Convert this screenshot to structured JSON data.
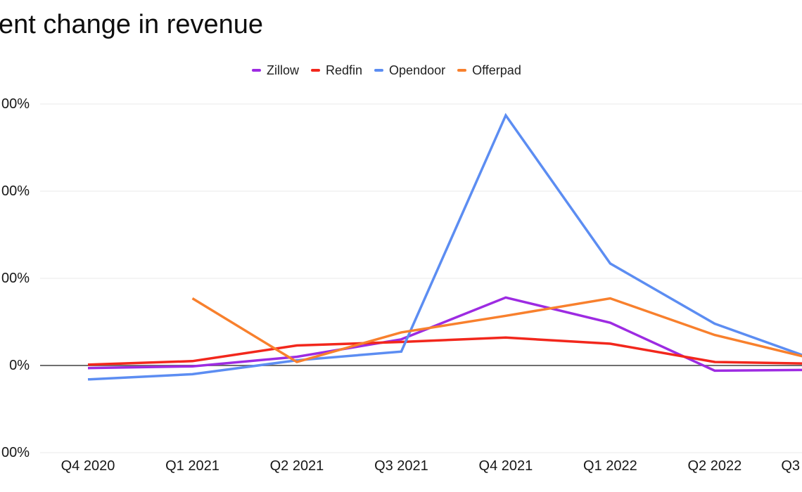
{
  "title": "ent change in revenue",
  "colors": {
    "background": "#FFFFFF",
    "grid": "#E8E8E8",
    "zero_line": "#6F6F6F",
    "text": "#171717",
    "title_text": "#0E0E0E"
  },
  "chart_data": {
    "type": "line",
    "title_visible": "ent change in revenue",
    "x": [
      "Q4 2020",
      "Q1 2021",
      "Q2 2021",
      "Q3 2021",
      "Q4 2021",
      "Q1 2022",
      "Q2 2022",
      "Q3 2022"
    ],
    "series": [
      {
        "name": "Zillow",
        "color": "#9D2BE2",
        "values": [
          -3,
          -1,
          10,
          30,
          78,
          49,
          -6,
          -5
        ]
      },
      {
        "name": "Redfin",
        "color": "#F2271C",
        "values": [
          1,
          5,
          23,
          27,
          32,
          25,
          4,
          2
        ]
      },
      {
        "name": "Opendoor",
        "color": "#5C8DF2",
        "values": [
          -16,
          -10,
          6,
          16,
          287,
          117,
          48,
          5
        ]
      },
      {
        "name": "Offerpad",
        "color": "#F8802D",
        "values": [
          null,
          77,
          4,
          38,
          57,
          77,
          35,
          6
        ]
      }
    ],
    "y_axis": {
      "unit": "%",
      "tick_values": [
        300,
        200,
        100,
        0,
        -100
      ],
      "tick_labels_visible": [
        "00%",
        "00%",
        "00%",
        "0%",
        "00%"
      ],
      "range": [
        -100,
        300
      ]
    },
    "x_axis": {
      "tick_labels_visible": [
        "Q4 2020",
        "Q1 2021",
        "Q2 2021",
        "Q3 2021",
        "Q4 2021",
        "Q1 2022",
        "Q2 2022",
        "Q3"
      ]
    },
    "grid": true,
    "legend_position": "top"
  }
}
